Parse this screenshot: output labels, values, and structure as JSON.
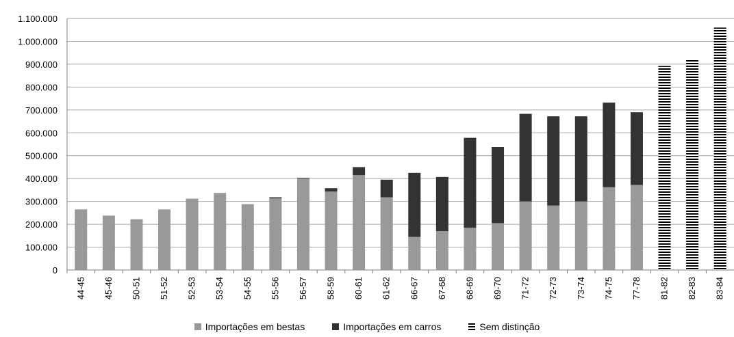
{
  "chart_data": {
    "type": "bar",
    "stacked": true,
    "categories": [
      "44-45",
      "45-46",
      "50-51",
      "51-52",
      "52-53",
      "53-54",
      "54-55",
      "55-56",
      "56-57",
      "58-59",
      "60-61",
      "61-62",
      "66-67",
      "67-68",
      "68-69",
      "69-70",
      "71-72",
      "72-73",
      "73-74",
      "74-75",
      "77-78",
      "81-82",
      "82-83",
      "83-84"
    ],
    "series": [
      {
        "name": "Importações em bestas",
        "color": "#999999",
        "values": [
          265000,
          238000,
          222000,
          265000,
          312000,
          337000,
          288000,
          313000,
          400000,
          343000,
          415000,
          318000,
          145000,
          170000,
          185000,
          205000,
          300000,
          282000,
          300000,
          362000,
          372000,
          0,
          0,
          0
        ]
      },
      {
        "name": "Importações em carros",
        "color": "#333333",
        "values": [
          0,
          0,
          0,
          0,
          0,
          0,
          0,
          5000,
          3000,
          15000,
          35000,
          77000,
          280000,
          237000,
          393000,
          333000,
          383000,
          390000,
          372000,
          370000,
          318000,
          0,
          0,
          0
        ]
      },
      {
        "name": "Sem distinção",
        "color": "#000000",
        "pattern": "horizontal-stripes",
        "values": [
          0,
          0,
          0,
          0,
          0,
          0,
          0,
          0,
          0,
          0,
          0,
          0,
          0,
          0,
          0,
          0,
          0,
          0,
          0,
          0,
          0,
          892000,
          918000,
          1060000
        ]
      }
    ],
    "ylim": [
      0,
      1100000
    ],
    "yticks": [
      "0",
      "100.000",
      "200.000",
      "300.000",
      "400.000",
      "500.000",
      "600.000",
      "700.000",
      "800.000",
      "900.000",
      "1.000.000",
      "1.100.000"
    ],
    "grid": true,
    "legend_position": "bottom",
    "title": "",
    "xlabel": "",
    "ylabel": ""
  }
}
